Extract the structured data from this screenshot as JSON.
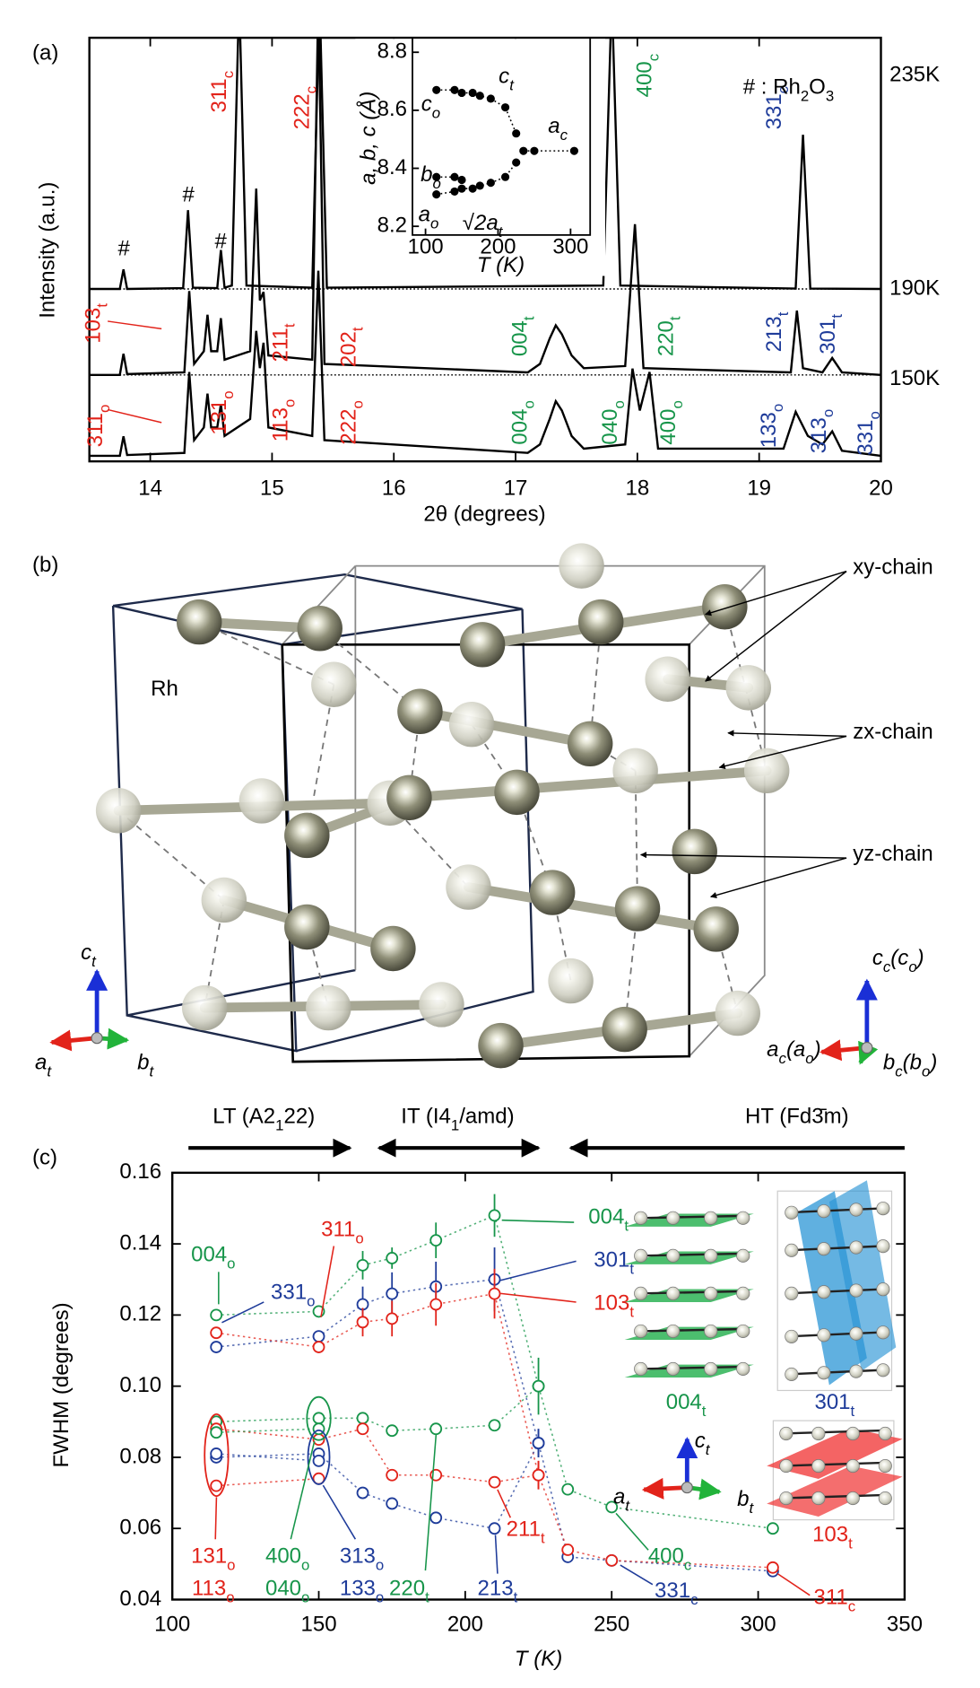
{
  "panels": [
    "(a)",
    "(b)",
    "(c)"
  ],
  "chart_data": [
    {
      "type": "line",
      "ylabel": "Intensity (a.u.)",
      "xlabel": "2θ (degrees)",
      "xlim": [
        13.5,
        20
      ],
      "xticks": [
        14,
        15,
        16,
        17,
        18,
        19,
        20
      ],
      "ylim": [
        0,
        100
      ],
      "note": [
        "# : Rh",
        "2",
        "O",
        "3"
      ],
      "series": [
        {
          "label": "235K",
          "color": "#000000",
          "x": [
            13.5,
            13.75,
            13.78,
            13.81,
            14.27,
            14.31,
            14.35,
            14.55,
            14.58,
            14.61,
            14.67,
            14.73,
            14.79,
            15.33,
            15.39,
            15.45,
            17.72,
            17.79,
            17.86,
            19.3,
            19.36,
            19.42,
            20
          ],
          "values": [
            40.7,
            40.7,
            45.3,
            40.7,
            40.9,
            59.3,
            41,
            40.9,
            49.9,
            41,
            41.5,
            110,
            41.5,
            41,
            110,
            41,
            41.5,
            110,
            41.5,
            40.8,
            77.1,
            40.8,
            40.7
          ]
        },
        {
          "label": "190K",
          "color": "#000000",
          "x": [
            13.5,
            13.75,
            13.78,
            13.81,
            14.28,
            14.32,
            14.36,
            14.44,
            14.47,
            14.5,
            14.55,
            14.58,
            14.61,
            14.82,
            14.87,
            14.9,
            14.93,
            14.97,
            15.33,
            15.38,
            15.43,
            17.1,
            17.2,
            17.28,
            17.33,
            17.38,
            17.46,
            17.56,
            17.9,
            17.98,
            18.05,
            19.26,
            19.31,
            19.36,
            19.52,
            19.6,
            19.68,
            20
          ],
          "values": [
            20.4,
            20.4,
            25.4,
            20.6,
            21,
            40.2,
            23,
            26,
            34.6,
            26,
            26,
            33.8,
            24,
            26,
            64.4,
            38,
            40,
            25,
            24,
            110,
            23,
            21,
            23,
            29,
            32.1,
            30,
            25,
            22,
            22.5,
            56,
            22,
            21,
            35.6,
            22,
            21,
            24.4,
            21,
            20.4
          ]
        },
        {
          "label": "150K",
          "color": "#000000",
          "x": [
            13.5,
            13.75,
            13.78,
            13.81,
            14.28,
            14.32,
            14.36,
            14.44,
            14.47,
            14.5,
            14.55,
            14.58,
            14.61,
            14.82,
            14.87,
            14.9,
            14.93,
            14.97,
            15.33,
            15.38,
            15.43,
            17.1,
            17.2,
            17.28,
            17.33,
            17.38,
            17.46,
            17.56,
            17.9,
            17.96,
            18.02,
            18.1,
            18.17,
            19.2,
            19.3,
            19.4,
            19.52,
            19.6,
            19.68,
            20
          ],
          "values": [
            1.3,
            1.3,
            5.9,
            1.5,
            2,
            21.1,
            5,
            8,
            16,
            8,
            8,
            13.5,
            6,
            10,
            30.8,
            22,
            28,
            8,
            6,
            45,
            5,
            2,
            4,
            10,
            14.2,
            12,
            6,
            3,
            4,
            21.9,
            12,
            21.1,
            3,
            3,
            11.7,
            6,
            4,
            7.1,
            2.5,
            1.3
          ]
        }
      ],
      "annotations": [
        {
          "text": [
            "311",
            "c"
          ],
          "color": "#e2231a"
        },
        {
          "text": [
            "222",
            "c"
          ],
          "color": "#e2231a"
        },
        {
          "text": [
            "400",
            "c"
          ],
          "color": "#17954a"
        },
        {
          "text": [
            "331",
            "c"
          ],
          "color": "#1f3c9a"
        },
        {
          "text": [
            "#"
          ],
          "color": "#000000"
        },
        {
          "text": [
            "#"
          ],
          "color": "#000000"
        },
        {
          "text": [
            "#"
          ],
          "color": "#000000"
        },
        {
          "text": [
            "103",
            "t"
          ],
          "color": "#e2231a"
        },
        {
          "text": [
            "211",
            "t"
          ],
          "color": "#e2231a"
        },
        {
          "text": [
            "202",
            "t"
          ],
          "color": "#e2231a"
        },
        {
          "text": [
            "004",
            "t"
          ],
          "color": "#17954a"
        },
        {
          "text": [
            "220",
            "t"
          ],
          "color": "#17954a"
        },
        {
          "text": [
            "213",
            "t"
          ],
          "color": "#1f3c9a"
        },
        {
          "text": [
            "301",
            "t"
          ],
          "color": "#1f3c9a"
        },
        {
          "text": [
            "311",
            "o"
          ],
          "color": "#e2231a"
        },
        {
          "text": [
            "131",
            "o"
          ],
          "color": "#e2231a"
        },
        {
          "text": [
            "113",
            "o"
          ],
          "color": "#e2231a"
        },
        {
          "text": [
            "222",
            "o"
          ],
          "color": "#e2231a"
        },
        {
          "text": [
            "004",
            "o"
          ],
          "color": "#17954a"
        },
        {
          "text": [
            "040",
            "o"
          ],
          "color": "#17954a"
        },
        {
          "text": [
            "400",
            "o"
          ],
          "color": "#17954a"
        },
        {
          "text": [
            "133",
            "o"
          ],
          "color": "#1f3c9a"
        },
        {
          "text": [
            "313",
            "o"
          ],
          "color": "#1f3c9a"
        },
        {
          "text": [
            "331",
            "o"
          ],
          "color": "#1f3c9a"
        }
      ]
    },
    {
      "type": "line",
      "ylabel": "a, b, c (Å)",
      "xlabel": "T (K)",
      "xlim": [
        82,
        327
      ],
      "xticks": [
        100,
        200,
        300
      ],
      "ylim": [
        8.17,
        8.85
      ],
      "yticks": [
        8.2,
        8.4,
        8.6,
        8.8
      ],
      "series": [
        {
          "color": "#000000",
          "x": [
            115,
            140,
            150,
            165,
            175,
            190,
            210,
            225
          ],
          "values": [
            8.67,
            8.67,
            8.66,
            8.66,
            8.65,
            8.64,
            8.61,
            8.52
          ]
        },
        {
          "color": "#000000",
          "x": [
            115,
            140,
            150,
            165,
            175,
            190,
            210,
            225
          ],
          "values": [
            8.31,
            8.32,
            8.33,
            8.33,
            8.34,
            8.35,
            8.37,
            8.42
          ]
        },
        {
          "color": "#000000",
          "x": [
            115,
            140,
            150
          ],
          "values": [
            8.37,
            8.37,
            8.36
          ]
        },
        {
          "color": "#000000",
          "x": [
            235,
            250,
            305
          ],
          "values": [
            8.46,
            8.46,
            8.46
          ]
        }
      ],
      "annotations": [
        {
          "text": [
            "c",
            "t"
          ],
          "color": "#000000"
        },
        {
          "text": [
            "c",
            "o"
          ],
          "color": "#000000"
        },
        {
          "text": [
            "b",
            "o"
          ],
          "color": "#000000"
        },
        {
          "text": [
            "a",
            "o"
          ],
          "color": "#000000"
        },
        {
          "text": [
            "√2a",
            "t"
          ],
          "color": "#000000"
        },
        {
          "text": [
            "a",
            "c"
          ],
          "color": "#000000"
        }
      ]
    },
    {
      "type": "line",
      "ylabel": "FWHM (degrees)",
      "xlabel": "T (K)",
      "xlim": [
        100,
        350
      ],
      "xticks": [
        100,
        150,
        200,
        250,
        300,
        350
      ],
      "ylim": [
        0.04,
        0.16
      ],
      "yticks": [
        0.04,
        0.06,
        0.08,
        {
          "value": 0.1,
          "label": "0.10"
        },
        0.12,
        0.14,
        0.16
      ],
      "phases": [
        [
          "LT (A2",
          "1",
          "22)"
        ],
        [
          "IT (I4",
          "1",
          "/amd)"
        ],
        [
          "HT (Fd3̄m)"
        ]
      ],
      "series": [
        {
          "color": "#17954a",
          "x": [
            115,
            150,
            165,
            175,
            190,
            210,
            225,
            235,
            250,
            305
          ],
          "values": [
            0.12,
            0.121,
            0.134,
            0.136,
            0.141,
            0.148,
            0.1,
            0.071,
            0.066,
            0.06
          ],
          "errors": [
            null,
            null,
            0.004,
            0.003,
            0.005,
            0.006,
            0.008,
            null,
            null,
            null
          ]
        },
        {
          "color": "#17954a",
          "x": [
            115,
            150,
            165,
            175,
            190,
            210,
            225
          ],
          "values": [
            0.09,
            0.091,
            0.091,
            0.0875,
            0.088,
            0.089,
            0.1
          ],
          "errors": [
            null,
            null,
            null,
            null,
            null,
            null,
            null
          ]
        },
        {
          "color": "#1f3c9a",
          "x": [
            115,
            150,
            165,
            175,
            190,
            210,
            225,
            235,
            250,
            305
          ],
          "values": [
            0.111,
            0.114,
            0.123,
            0.126,
            0.128,
            0.13,
            0.084,
            0.052,
            0.051,
            0.048
          ],
          "errors": [
            null,
            null,
            0.005,
            0.006,
            0.007,
            0.009,
            0.004,
            null,
            null,
            null
          ]
        },
        {
          "color": "#e2231a",
          "x": [
            115,
            150,
            165,
            175,
            190,
            210,
            225,
            235,
            250,
            305
          ],
          "values": [
            0.115,
            0.111,
            0.118,
            0.119,
            0.123,
            0.126,
            0.075,
            0.054,
            0.051,
            0.049
          ],
          "errors": [
            null,
            null,
            0.004,
            0.005,
            0.006,
            0.007,
            0.004,
            null,
            null,
            null
          ]
        },
        {
          "color": "#1f3c9a",
          "x": [
            115,
            150,
            165,
            175,
            190,
            210,
            225
          ],
          "values": [
            0.08,
            0.081,
            0.07,
            0.067,
            0.063,
            0.06,
            0.084
          ],
          "errors": [
            null,
            null,
            null,
            null,
            null,
            null,
            0.004
          ]
        },
        {
          "color": "#e2231a",
          "x": [
            115,
            150,
            165,
            175,
            190,
            210,
            225
          ],
          "values": [
            0.088,
            0.085,
            0.088,
            0.075,
            0.075,
            0.073,
            0.075
          ],
          "errors": [
            null,
            null,
            null,
            null,
            null,
            null,
            0.004
          ]
        },
        {
          "color": "#e2231a",
          "x": [
            115,
            150
          ],
          "values": [
            0.072,
            0.074
          ],
          "errors": [
            null,
            null
          ]
        },
        {
          "color": "#1f3c9a",
          "x": [
            115,
            150
          ],
          "values": [
            0.081,
            0.079
          ],
          "errors": [
            null,
            null
          ]
        },
        {
          "color": "#17954a",
          "x": [
            115,
            150
          ],
          "values": [
            0.087,
            0.088
          ],
          "errors": [
            null,
            null
          ]
        }
      ],
      "annotations": [
        {
          "text": [
            "004",
            "o"
          ],
          "color": "#17954a"
        },
        {
          "text": [
            "331",
            "o"
          ],
          "color": "#1f3c9a"
        },
        {
          "text": [
            "311",
            "o"
          ],
          "color": "#e2231a"
        },
        {
          "text": [
            "004",
            "t"
          ],
          "color": "#17954a"
        },
        {
          "text": [
            "301",
            "t"
          ],
          "color": "#1f3c9a"
        },
        {
          "text": [
            "103",
            "t"
          ],
          "color": "#e2231a"
        },
        {
          "text": [
            "131",
            "o"
          ],
          "color": "#e2231a"
        },
        {
          "text": [
            "113",
            "o"
          ],
          "color": "#e2231a"
        },
        {
          "text": [
            "400",
            "o"
          ],
          "color": "#17954a"
        },
        {
          "text": [
            "040",
            "o"
          ],
          "color": "#17954a"
        },
        {
          "text": [
            "313",
            "o"
          ],
          "color": "#1f3c9a"
        },
        {
          "text": [
            "133",
            "o"
          ],
          "color": "#1f3c9a"
        },
        {
          "text": [
            "220",
            "t"
          ],
          "color": "#17954a"
        },
        {
          "text": [
            "211",
            "t"
          ],
          "color": "#e2231a"
        },
        {
          "text": [
            "213",
            "t"
          ],
          "color": "#1f3c9a"
        },
        {
          "text": [
            "400",
            "c"
          ],
          "color": "#17954a"
        },
        {
          "text": [
            "331",
            "c"
          ],
          "color": "#1f3c9a"
        },
        {
          "text": [
            "311",
            "c"
          ],
          "color": "#e2231a"
        }
      ],
      "inset_labels": [
        {
          "text": [
            "004",
            "t"
          ],
          "color": "#17954a"
        },
        {
          "text": [
            "301",
            "t"
          ],
          "color": "#1f3c9a"
        },
        {
          "text": [
            "103",
            "t"
          ],
          "color": "#e2231a"
        },
        {
          "text": [
            "c",
            "t"
          ],
          "color": "#000000"
        },
        {
          "text": [
            "a",
            "t"
          ],
          "color": "#000000"
        },
        {
          "text": [
            "b",
            "t"
          ],
          "color": "#000000"
        }
      ]
    }
  ],
  "structure": {
    "atom": "Rh",
    "chains": [
      "xy-chain",
      "zx-chain",
      "yz-chain"
    ],
    "axes_t": [
      [
        "c",
        "t"
      ],
      [
        "a",
        "t"
      ],
      [
        "b",
        "t"
      ]
    ],
    "axes_c": [
      [
        "c",
        "c",
        "(c",
        "o",
        ")"
      ],
      [
        "a",
        "c",
        "(a",
        "o",
        ")"
      ],
      [
        "b",
        "c",
        "(b",
        "o",
        ")"
      ]
    ]
  }
}
